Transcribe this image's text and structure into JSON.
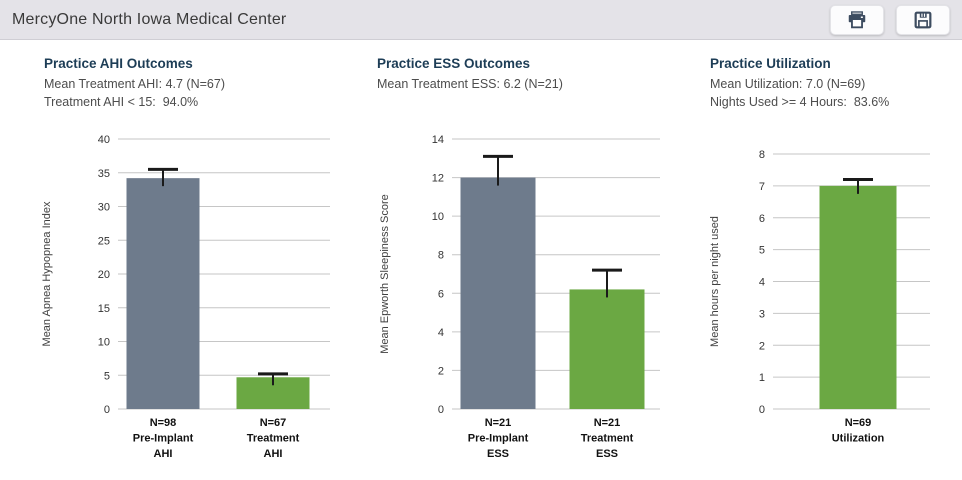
{
  "header": {
    "title": "MercyOne North Iowa Medical Center",
    "print_button": "Print",
    "save_button": "Save"
  },
  "panels": [
    {
      "title": "Practice AHI Outcomes",
      "line1": "Mean Treatment AHI: 4.7 (N=67)",
      "line2": "Treatment AHI < 15:  94.0%"
    },
    {
      "title": "Practice ESS Outcomes",
      "line1": "Mean Treatment ESS: 6.2 (N=21)",
      "line2": ""
    },
    {
      "title": "Practice Utilization",
      "line1": "Mean Utilization: 7.0 (N=69)",
      "line2": "Nights Used >= 4 Hours:  83.6%"
    }
  ],
  "chart_data": [
    {
      "type": "bar",
      "title": "Practice AHI Outcomes",
      "ylabel": "Mean Apnea Hypopnea Index",
      "ylim": [
        0,
        40
      ],
      "ytick_step": 5,
      "grid": true,
      "legend": "none",
      "categories": [
        "N=98\nPre-Implant\nAHI",
        "N=67\nTreatment\nAHI"
      ],
      "values": [
        34.2,
        4.7
      ],
      "errors": [
        1.3,
        0.5
      ],
      "bar_colors": [
        "#6e7b8c",
        "#6ba843"
      ]
    },
    {
      "type": "bar",
      "title": "Practice ESS Outcomes",
      "ylabel": "Mean Epworth Sleepiness Score",
      "ylim": [
        0,
        14
      ],
      "ytick_step": 2,
      "grid": true,
      "legend": "none",
      "categories": [
        "N=21\nPre-Implant\nESS",
        "N=21\nTreatment\nESS"
      ],
      "values": [
        12.0,
        6.2
      ],
      "errors": [
        1.1,
        1.0
      ],
      "bar_colors": [
        "#6e7b8c",
        "#6ba843"
      ]
    },
    {
      "type": "bar",
      "title": "Practice Utilization",
      "ylabel": "Mean hours per night used",
      "ylim": [
        0,
        8
      ],
      "ytick_step": 1,
      "grid": true,
      "legend": "none",
      "categories": [
        "N=69\nUtilization"
      ],
      "values": [
        7.0
      ],
      "errors": [
        0.2
      ],
      "bar_colors": [
        "#6ba843"
      ]
    }
  ],
  "colors": {
    "header_bg": "#e4e3e8",
    "section_title": "#1d3d56",
    "pre_implant_bar": "#6e7b8c",
    "treatment_bar": "#6ba843",
    "gridline": "#c6c6c6",
    "error_bar": "#1a1a1a",
    "icon": "#3d4c60"
  }
}
